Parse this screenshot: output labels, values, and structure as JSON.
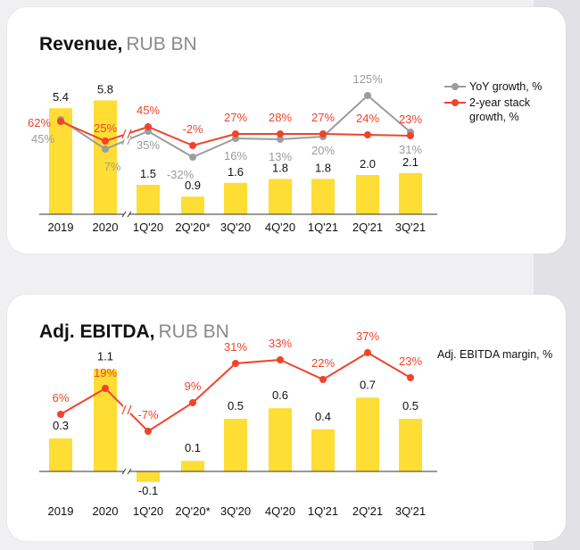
{
  "colors": {
    "bar": "#fedd34",
    "line_primary": "#f0442a",
    "line_secondary": "#9c9c9c",
    "text": "#111111",
    "muted": "#8a8a8a",
    "card": "#ffffff",
    "background": "#f0f0f2"
  },
  "chart_data": [
    {
      "type": "bar",
      "title": "Revenue,",
      "unit": "RUB BN",
      "categories": [
        "2019",
        "2020",
        "1Q'20",
        "2Q'20*",
        "3Q'20",
        "4Q'20",
        "1Q'21",
        "2Q'21",
        "3Q'21"
      ],
      "axis_break_after_index": 1,
      "series": [
        {
          "name": "Revenue",
          "type": "bar",
          "values": [
            5.4,
            5.8,
            1.5,
            0.9,
            1.6,
            1.8,
            1.8,
            2.0,
            2.1
          ],
          "labels": [
            "5.4",
            "5.8",
            "1.5",
            "0.9",
            "1.6",
            "1.8",
            "1.8",
            "2.0",
            "2.1"
          ]
        },
        {
          "name": "YoY growth, %",
          "type": "line",
          "values": [
            45,
            7,
            35,
            -32,
            16,
            13,
            20,
            125,
            31
          ],
          "labels": [
            "45%",
            "7%",
            "35%",
            "-32%",
            "16%",
            "13%",
            "20%",
            "125%",
            "31%"
          ]
        },
        {
          "name": "2-year stack growth, %",
          "type": "line",
          "values": [
            62,
            25,
            45,
            -2,
            27,
            28,
            27,
            24,
            23
          ],
          "labels": [
            "62%",
            "25%",
            "45%",
            "-2%",
            "27%",
            "28%",
            "27%",
            "24%",
            "23%"
          ]
        }
      ],
      "legend": [
        "YoY growth, %",
        "2-year stack",
        "growth, %"
      ]
    },
    {
      "type": "bar",
      "title": "Adj. EBITDA,",
      "unit": "RUB BN",
      "categories": [
        "2019",
        "2020",
        "1Q'20",
        "2Q'20*",
        "3Q'20",
        "4Q'20",
        "1Q'21",
        "2Q'21",
        "3Q'21"
      ],
      "axis_break_after_index": 1,
      "series": [
        {
          "name": "Adj. EBITDA",
          "type": "bar",
          "values": [
            0.3,
            1.1,
            -0.1,
            0.1,
            0.5,
            0.6,
            0.4,
            0.7,
            0.5
          ],
          "labels": [
            "0.3",
            "1.1",
            "-0.1",
            "0.1",
            "0.5",
            "0.6",
            "0.4",
            "0.7",
            "0.5"
          ]
        },
        {
          "name": "Adj. EBITDA margin, %",
          "type": "line",
          "values": [
            6,
            19,
            -7,
            9,
            31,
            33,
            22,
            37,
            23
          ],
          "labels": [
            "6%",
            "19%",
            "-7%",
            "9%",
            "31%",
            "33%",
            "22%",
            "37%",
            "23%"
          ]
        }
      ],
      "legend": [
        "Adj. EBITDA margin, %"
      ]
    }
  ]
}
